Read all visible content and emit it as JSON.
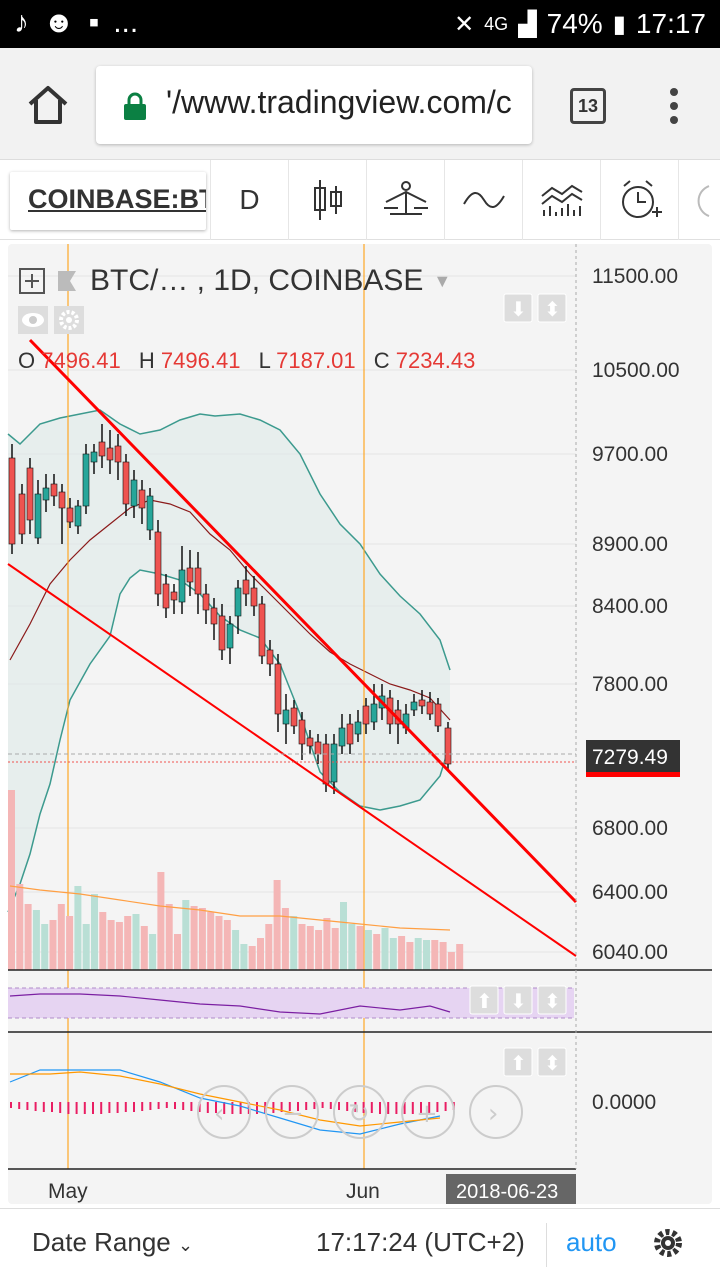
{
  "status_bar": {
    "battery": "74%",
    "time": "17:17",
    "network": "4G",
    "more": "..."
  },
  "browser": {
    "url": "'/www.tradingview.com/c",
    "tab_count": "13"
  },
  "toolbar": {
    "symbol": "COINBASE:BTCUSD",
    "interval": "D"
  },
  "legend": {
    "title": "BTC/… , 1D, COINBASE"
  },
  "ohlc": {
    "o_label": "O",
    "o_value": "7496.41",
    "h_label": "H",
    "h_value": "7496.41",
    "l_label": "L",
    "l_value": "7187.01",
    "c_label": "C",
    "c_value": "7234.43"
  },
  "chart_data": {
    "type": "candlestick",
    "price_axis": [
      "11500.00",
      "10500.00",
      "9700.00",
      "8900.00",
      "8400.00",
      "7800.00",
      "6800.00",
      "6400.00",
      "6040.00"
    ],
    "last_price": "7279.49",
    "macd_axis": "0.0000",
    "x_labels": [
      "May",
      "Jun"
    ],
    "cursor_date": "2018-06-23",
    "colors": {
      "up": "#26a69a",
      "down": "#ef5350",
      "trendline": "#ff0000",
      "band": "#3c9a8e"
    }
  },
  "bottom_bar": {
    "date_range": "Date Range",
    "time": "17:17:24 (UTC+2)",
    "auto": "auto"
  }
}
